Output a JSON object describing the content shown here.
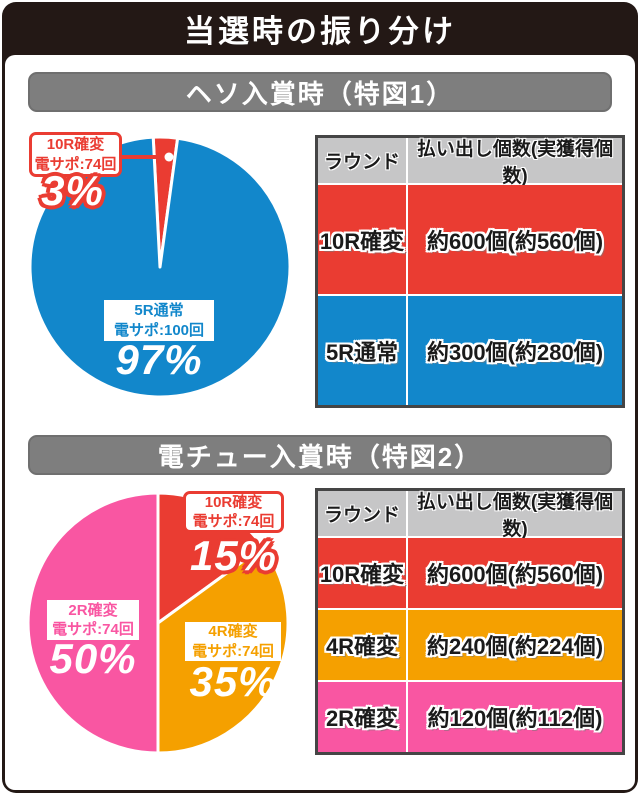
{
  "title": "当選時の振り分け",
  "colors": {
    "frame": "#231815",
    "bar": "#7e7e7e",
    "headerGray": "#c6c6c7",
    "tableBorder": "#454545",
    "red": "#ea3c32",
    "blue": "#1287cb",
    "orange": "#f5a000",
    "pink": "#f956a2"
  },
  "chart_data": [
    {
      "type": "pie",
      "title": "ヘソ入賞時（特図1）",
      "start_angle_deg": -3,
      "legend_position": "callout-labels",
      "slices": [
        {
          "label": "10R確変",
          "sub": "電サポ:74回",
          "value_pct": 3,
          "pct_label": "3%",
          "color": "#ea3c32"
        },
        {
          "label": "5R通常",
          "sub": "電サポ:100回",
          "value_pct": 97,
          "pct_label": "97%",
          "color": "#1287cb"
        }
      ]
    },
    {
      "type": "pie",
      "title": "電チュー入賞時（特図2）",
      "start_angle_deg": 0,
      "legend_position": "callout-labels",
      "slices": [
        {
          "label": "10R確変",
          "sub": "電サポ:74回",
          "value_pct": 15,
          "pct_label": "15%",
          "color": "#ea3c32"
        },
        {
          "label": "4R確変",
          "sub": "電サポ:74回",
          "value_pct": 35,
          "pct_label": "35%",
          "color": "#f5a000"
        },
        {
          "label": "2R確変",
          "sub": "電サポ:74回",
          "value_pct": 50,
          "pct_label": "50%",
          "color": "#f956a2"
        }
      ]
    }
  ],
  "sections": [
    {
      "heading": "ヘソ入賞時（特図1）",
      "table": {
        "headers": [
          "ラウンド",
          "払い出し個数(実獲得個数)"
        ],
        "rows": [
          {
            "round": "10R確変",
            "payout": "約600個(約560個)",
            "color": "#ea3c32"
          },
          {
            "round": "5R通常",
            "payout": "約300個(約280個)",
            "color": "#1287cb"
          }
        ]
      }
    },
    {
      "heading": "電チュー入賞時（特図2）",
      "table": {
        "headers": [
          "ラウンド",
          "払い出し個数(実獲得個数)"
        ],
        "rows": [
          {
            "round": "10R確変",
            "payout": "約600個(約560個)",
            "color": "#ea3c32"
          },
          {
            "round": "4R確変",
            "payout": "約240個(約224個)",
            "color": "#f5a000"
          },
          {
            "round": "2R確変",
            "payout": "約120個(約112個)",
            "color": "#f956a2"
          }
        ]
      }
    }
  ]
}
